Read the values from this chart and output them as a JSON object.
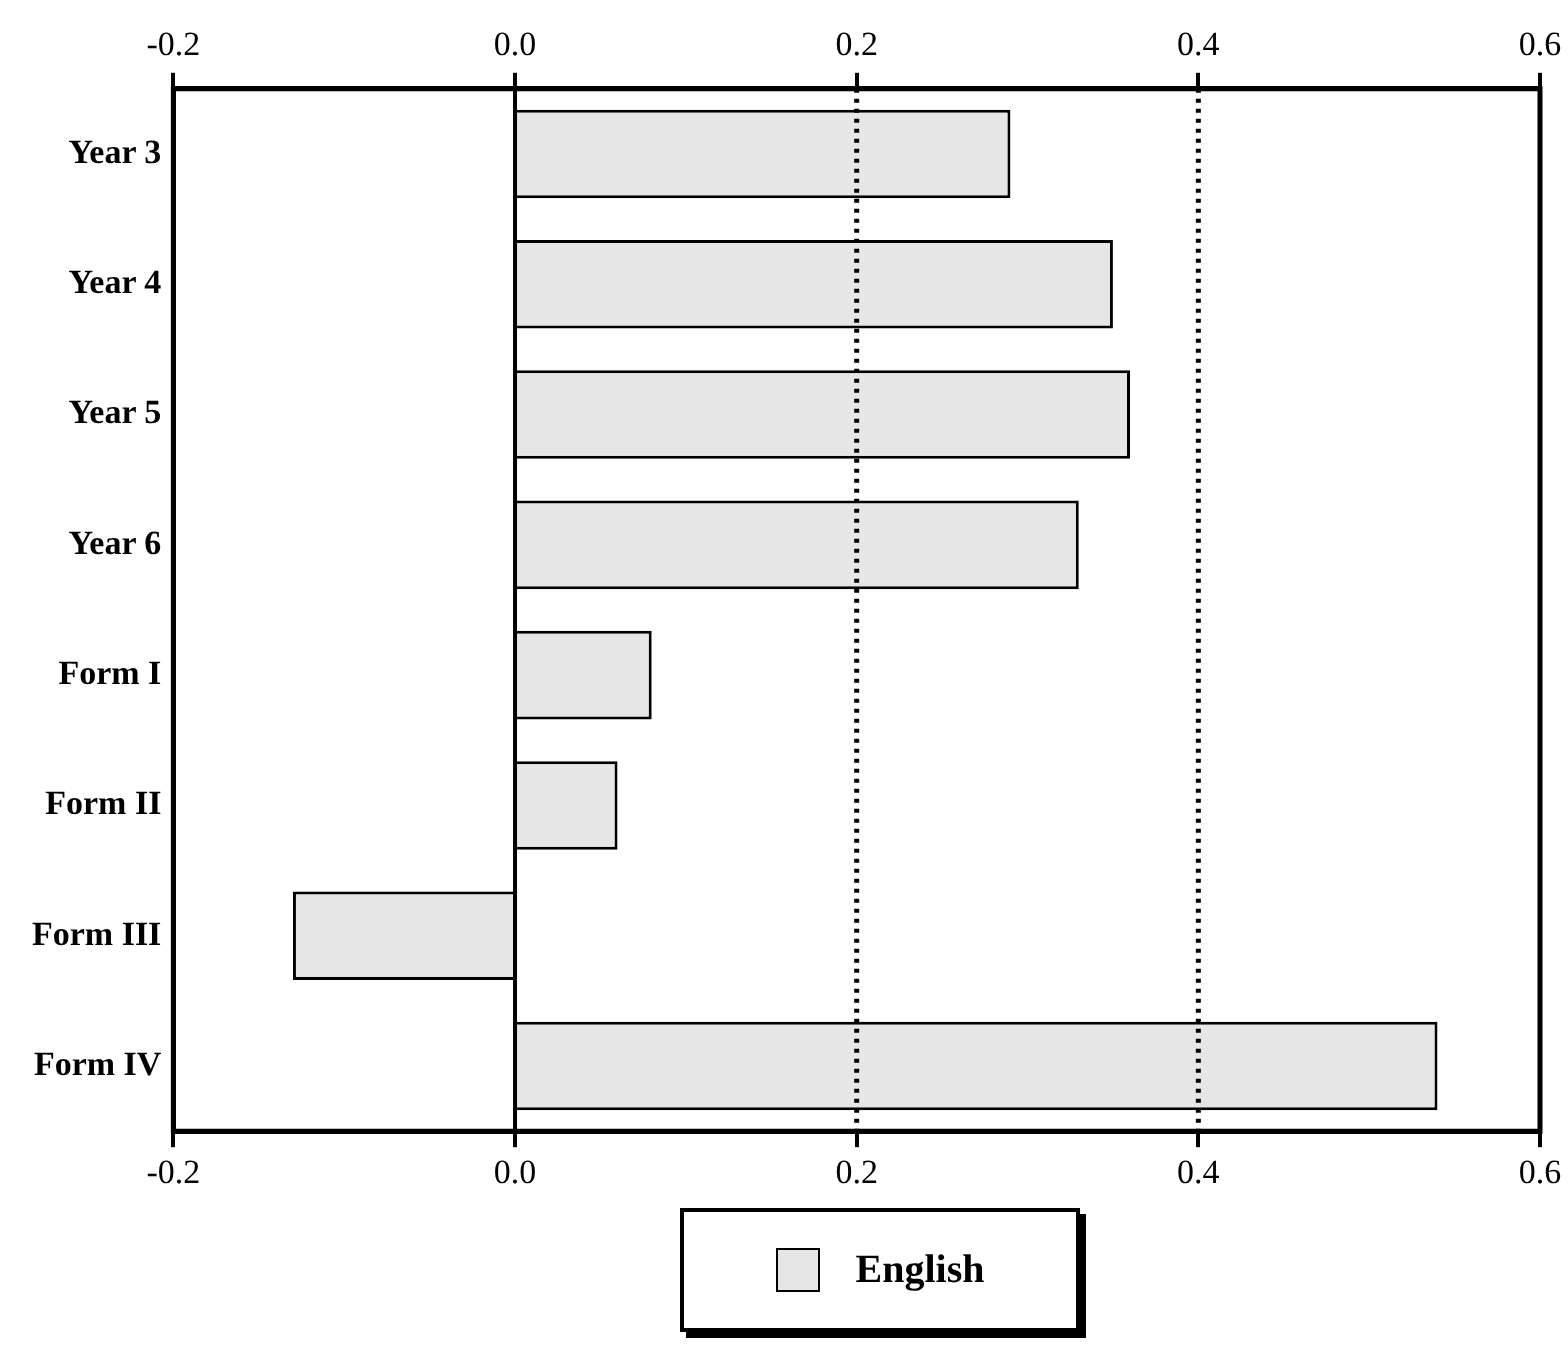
{
  "chart_data": {
    "type": "bar",
    "orientation": "horizontal",
    "categories": [
      "Year 3",
      "Year 4",
      "Year 5",
      "Year 6",
      "Form I",
      "Form II",
      "Form III",
      "Form IV"
    ],
    "series": [
      {
        "name": "English",
        "color": "#e6e6e6",
        "values": [
          0.29,
          0.35,
          0.36,
          0.33,
          0.08,
          0.06,
          -0.13,
          0.54
        ]
      }
    ],
    "xlim": [
      -0.2,
      0.6
    ],
    "xticks": [
      {
        "value": -0.2,
        "label": "-0.2"
      },
      {
        "value": 0,
        "label": "0.0"
      },
      {
        "value": 0.2,
        "label": "0.2"
      },
      {
        "value": 0.4,
        "label": "0.4"
      },
      {
        "value": 0.6,
        "label": "0.6"
      }
    ],
    "x2lim": [
      -0.2,
      0.6
    ],
    "x2ticks": [
      {
        "value": -0.2,
        "label": "-0.2"
      },
      {
        "value": 0,
        "label": "0.0"
      },
      {
        "value": 0.2,
        "label": "0.2"
      },
      {
        "value": 0.4,
        "label": "0.4"
      },
      {
        "value": 0.6,
        "label": "0.6"
      }
    ],
    "ref_lines": [
      {
        "axis": "x",
        "value": 0,
        "line_style": "solid"
      },
      {
        "axis": "x",
        "value": 0.2,
        "line_style": "dotted"
      },
      {
        "axis": "x",
        "value": 0.4,
        "line_style": "dotted"
      }
    ],
    "grid": false,
    "legend": "bottom"
  }
}
